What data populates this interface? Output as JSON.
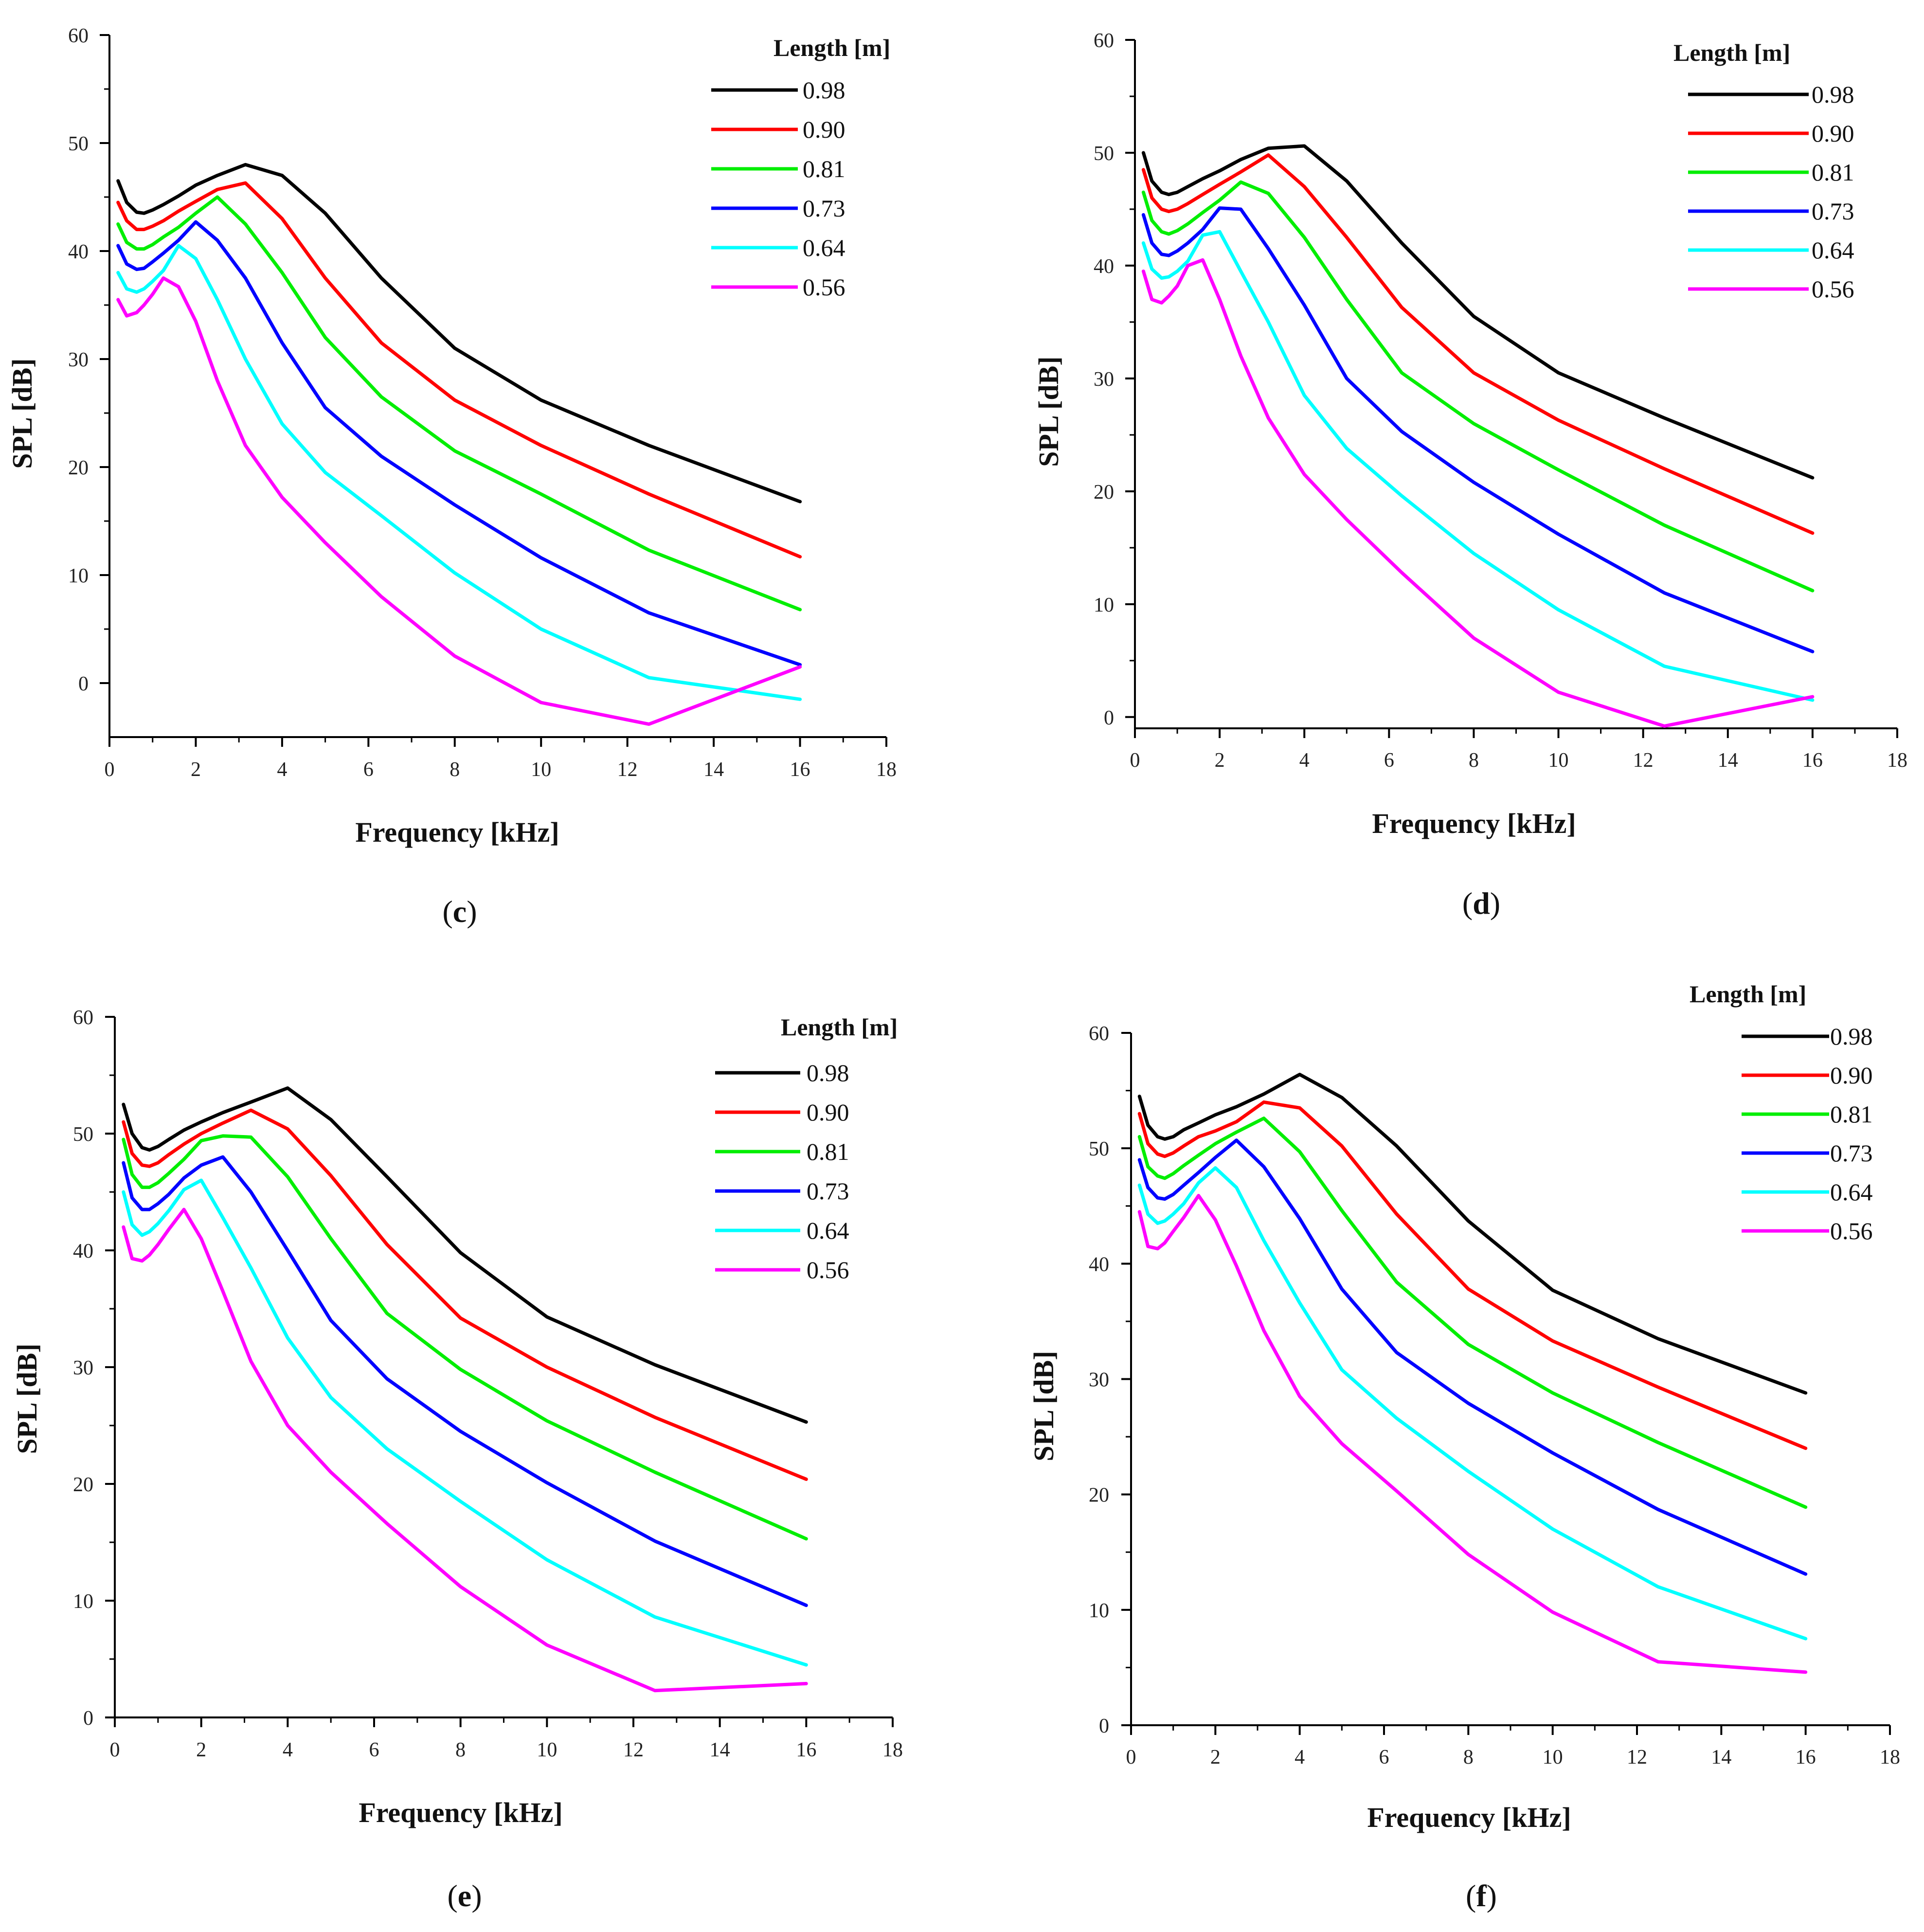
{
  "chart_data": [
    {
      "panel": "c",
      "type": "line",
      "xlabel": "Frequency [kHz]",
      "ylabel": "SPL [dB]",
      "xlim": [
        0,
        18
      ],
      "ylim": [
        -5,
        60
      ],
      "xticks": [
        0,
        2,
        4,
        6,
        8,
        10,
        12,
        14,
        16,
        18
      ],
      "yticks": [
        0,
        10,
        20,
        30,
        40,
        50,
        60
      ],
      "legend_title": "Length [m]",
      "legend_position": "top-right",
      "x": [
        0.2,
        0.4,
        0.63,
        0.8,
        1,
        1.25,
        1.6,
        2,
        2.5,
        3.15,
        4,
        5,
        6.3,
        8,
        10,
        12.5,
        16
      ],
      "series": [
        {
          "name": "0.98",
          "color": "#000000",
          "values": [
            46.5,
            44.5,
            43.6,
            43.5,
            43.8,
            44.3,
            45.1,
            46.1,
            47,
            48,
            47,
            43.5,
            37.5,
            31,
            26.2,
            22,
            16.8
          ]
        },
        {
          "name": "0.90",
          "color": "#ff0000",
          "values": [
            44.5,
            42.8,
            42,
            42,
            42.3,
            42.8,
            43.7,
            44.6,
            45.7,
            46.3,
            43,
            37.5,
            31.5,
            26.2,
            22,
            17.5,
            11.7
          ]
        },
        {
          "name": "0.81",
          "color": "#00ee00",
          "values": [
            42.5,
            40.8,
            40.2,
            40.2,
            40.6,
            41.3,
            42.2,
            43.5,
            45,
            42.5,
            38,
            32,
            26.5,
            21.5,
            17.5,
            12.3,
            6.8
          ]
        },
        {
          "name": "0.73",
          "color": "#0000ff",
          "values": [
            40.5,
            38.8,
            38.3,
            38.4,
            39,
            39.8,
            41,
            42.7,
            41,
            37.5,
            31.5,
            25.5,
            21,
            16.5,
            11.6,
            6.5,
            1.7
          ]
        },
        {
          "name": "0.64",
          "color": "#00ffff",
          "values": [
            38,
            36.5,
            36.2,
            36.5,
            37.2,
            38.2,
            40.5,
            39.3,
            35.5,
            30,
            24,
            19.5,
            15.5,
            10.2,
            5,
            0.5,
            -1.5
          ]
        },
        {
          "name": "0.56",
          "color": "#ff00ff",
          "values": [
            35.5,
            34,
            34.3,
            35,
            36,
            37.5,
            36.7,
            33.5,
            28,
            22,
            17.2,
            13,
            8,
            2.5,
            -1.8,
            -3.8,
            1.5
          ]
        }
      ],
      "caption": "c"
    },
    {
      "panel": "d",
      "type": "line",
      "xlabel": "Frequency [kHz]",
      "ylabel": "SPL [dB]",
      "xlim": [
        0,
        18
      ],
      "ylim": [
        -1,
        60
      ],
      "xticks": [
        0,
        2,
        4,
        6,
        8,
        10,
        12,
        14,
        16,
        18
      ],
      "yticks": [
        0,
        10,
        20,
        30,
        40,
        50,
        60
      ],
      "legend_title": "Length [m]",
      "legend_position": "top-right",
      "x": [
        0.2,
        0.4,
        0.63,
        0.8,
        1,
        1.25,
        1.6,
        2,
        2.5,
        3.15,
        4,
        5,
        6.3,
        8,
        10,
        12.5,
        16
      ],
      "series": [
        {
          "name": "0.98",
          "color": "#000000",
          "values": [
            50,
            47.5,
            46.5,
            46.3,
            46.5,
            47,
            47.7,
            48.4,
            49.4,
            50.4,
            50.6,
            47.5,
            42,
            35.5,
            30.5,
            26.5,
            21.2
          ]
        },
        {
          "name": "0.90",
          "color": "#ff0000",
          "values": [
            48.5,
            46,
            45,
            44.8,
            45,
            45.5,
            46.3,
            47.2,
            48.3,
            49.8,
            47,
            42.5,
            36.3,
            30.5,
            26.3,
            22,
            16.3
          ]
        },
        {
          "name": "0.81",
          "color": "#00ee00",
          "values": [
            46.5,
            44,
            43,
            42.8,
            43.1,
            43.7,
            44.7,
            45.8,
            47.4,
            46.4,
            42.5,
            37,
            30.5,
            26,
            21.9,
            17,
            11.2
          ]
        },
        {
          "name": "0.73",
          "color": "#0000ff",
          "values": [
            44.5,
            42,
            41,
            40.9,
            41.3,
            42,
            43.2,
            45.1,
            45,
            41.5,
            36.5,
            30,
            25.3,
            20.8,
            16.2,
            11,
            5.8
          ]
        },
        {
          "name": "0.64",
          "color": "#00ffff",
          "values": [
            42,
            39.7,
            38.9,
            39,
            39.5,
            40.4,
            42.7,
            43,
            39.5,
            35,
            28.5,
            23.8,
            19.6,
            14.5,
            9.5,
            4.5,
            1.5
          ]
        },
        {
          "name": "0.56",
          "color": "#ff00ff",
          "values": [
            39.5,
            37,
            36.7,
            37.3,
            38.2,
            40,
            40.5,
            37,
            32,
            26.5,
            21.5,
            17.5,
            12.8,
            7,
            2.2,
            -0.8,
            1.8
          ]
        }
      ],
      "caption": "d"
    },
    {
      "panel": "e",
      "type": "line",
      "xlabel": "Frequency [kHz]",
      "ylabel": "SPL [dB]",
      "xlim": [
        0,
        18
      ],
      "ylim": [
        0,
        60
      ],
      "xticks": [
        0,
        2,
        4,
        6,
        8,
        10,
        12,
        14,
        16,
        18
      ],
      "yticks": [
        0,
        10,
        20,
        30,
        40,
        50,
        60
      ],
      "legend_title": "Length [m]",
      "legend_position": "top-right",
      "x": [
        0.2,
        0.4,
        0.63,
        0.8,
        1,
        1.25,
        1.6,
        2,
        2.5,
        3.15,
        4,
        5,
        6.3,
        8,
        10,
        12.5,
        16
      ],
      "series": [
        {
          "name": "0.98",
          "color": "#000000",
          "values": [
            52.5,
            50,
            48.8,
            48.6,
            48.9,
            49.5,
            50.3,
            51,
            51.8,
            52.7,
            53.9,
            51.2,
            46.3,
            39.8,
            34.3,
            30.2,
            25.3
          ]
        },
        {
          "name": "0.90",
          "color": "#ff0000",
          "values": [
            51,
            48.3,
            47.3,
            47.2,
            47.5,
            48.2,
            49.1,
            50,
            50.9,
            52,
            50.4,
            46.4,
            40.5,
            34.2,
            30,
            25.7,
            20.4
          ]
        },
        {
          "name": "0.81",
          "color": "#00ee00",
          "values": [
            49.5,
            46.5,
            45.4,
            45.4,
            45.8,
            46.6,
            47.8,
            49.4,
            49.8,
            49.7,
            46.3,
            41,
            34.6,
            29.8,
            25.4,
            21,
            15.3
          ]
        },
        {
          "name": "0.73",
          "color": "#0000ff",
          "values": [
            47.5,
            44.5,
            43.5,
            43.5,
            44,
            44.8,
            46.2,
            47.3,
            48,
            45,
            40,
            34,
            29,
            24.5,
            20.1,
            15.1,
            9.6
          ]
        },
        {
          "name": "0.64",
          "color": "#00ffff",
          "values": [
            45,
            42.2,
            41.3,
            41.6,
            42.3,
            43.4,
            45.2,
            46,
            42.8,
            38.5,
            32.5,
            27.4,
            23,
            18.5,
            13.5,
            8.6,
            4.5
          ]
        },
        {
          "name": "0.56",
          "color": "#ff00ff",
          "values": [
            42,
            39.3,
            39.1,
            39.6,
            40.5,
            41.8,
            43.5,
            41,
            36.5,
            30.5,
            25,
            21,
            16.6,
            11.2,
            6.2,
            2.3,
            2.9
          ]
        }
      ],
      "caption": "e"
    },
    {
      "panel": "f",
      "type": "line",
      "xlabel": "Frequency [kHz]",
      "ylabel": "SPL [dB]",
      "xlim": [
        0,
        18
      ],
      "ylim": [
        0,
        60
      ],
      "xticks": [
        0,
        2,
        4,
        6,
        8,
        10,
        12,
        14,
        16,
        18
      ],
      "yticks": [
        0,
        10,
        20,
        30,
        40,
        50,
        60
      ],
      "legend_title": "Length [m]",
      "legend_position": "top-right",
      "x": [
        0.2,
        0.4,
        0.63,
        0.8,
        1,
        1.25,
        1.6,
        2,
        2.5,
        3.15,
        4,
        5,
        6.3,
        8,
        10,
        12.5,
        16
      ],
      "series": [
        {
          "name": "0.98",
          "color": "#000000",
          "values": [
            54.5,
            52,
            51,
            50.8,
            51,
            51.6,
            52.2,
            52.9,
            53.6,
            54.7,
            56.4,
            54.4,
            50.2,
            43.7,
            37.7,
            33.5,
            28.8
          ]
        },
        {
          "name": "0.90",
          "color": "#ff0000",
          "values": [
            53,
            50.4,
            49.5,
            49.3,
            49.6,
            50.2,
            51,
            51.5,
            52.3,
            54,
            53.5,
            50.2,
            44.3,
            37.8,
            33.3,
            29.3,
            24
          ]
        },
        {
          "name": "0.81",
          "color": "#00ee00",
          "values": [
            51,
            48.4,
            47.6,
            47.4,
            47.8,
            48.5,
            49.4,
            50.4,
            51.4,
            52.6,
            49.7,
            44.6,
            38.4,
            33,
            28.8,
            24.5,
            18.9
          ]
        },
        {
          "name": "0.73",
          "color": "#0000ff",
          "values": [
            49,
            46.6,
            45.7,
            45.6,
            46,
            46.8,
            47.9,
            49.2,
            50.7,
            48.4,
            43.9,
            37.8,
            32.3,
            27.9,
            23.6,
            18.7,
            13.1
          ]
        },
        {
          "name": "0.64",
          "color": "#00ffff",
          "values": [
            46.8,
            44.3,
            43.5,
            43.7,
            44.3,
            45.2,
            47,
            48.3,
            46.6,
            42,
            36.6,
            30.8,
            26.6,
            22,
            17,
            12,
            7.5
          ]
        },
        {
          "name": "0.56",
          "color": "#ff00ff",
          "values": [
            44.5,
            41.5,
            41.3,
            41.8,
            42.8,
            44,
            45.9,
            43.8,
            39.8,
            34.2,
            28.5,
            24.4,
            20.3,
            14.8,
            9.8,
            5.5,
            4.6
          ]
        }
      ],
      "caption": "f"
    }
  ]
}
